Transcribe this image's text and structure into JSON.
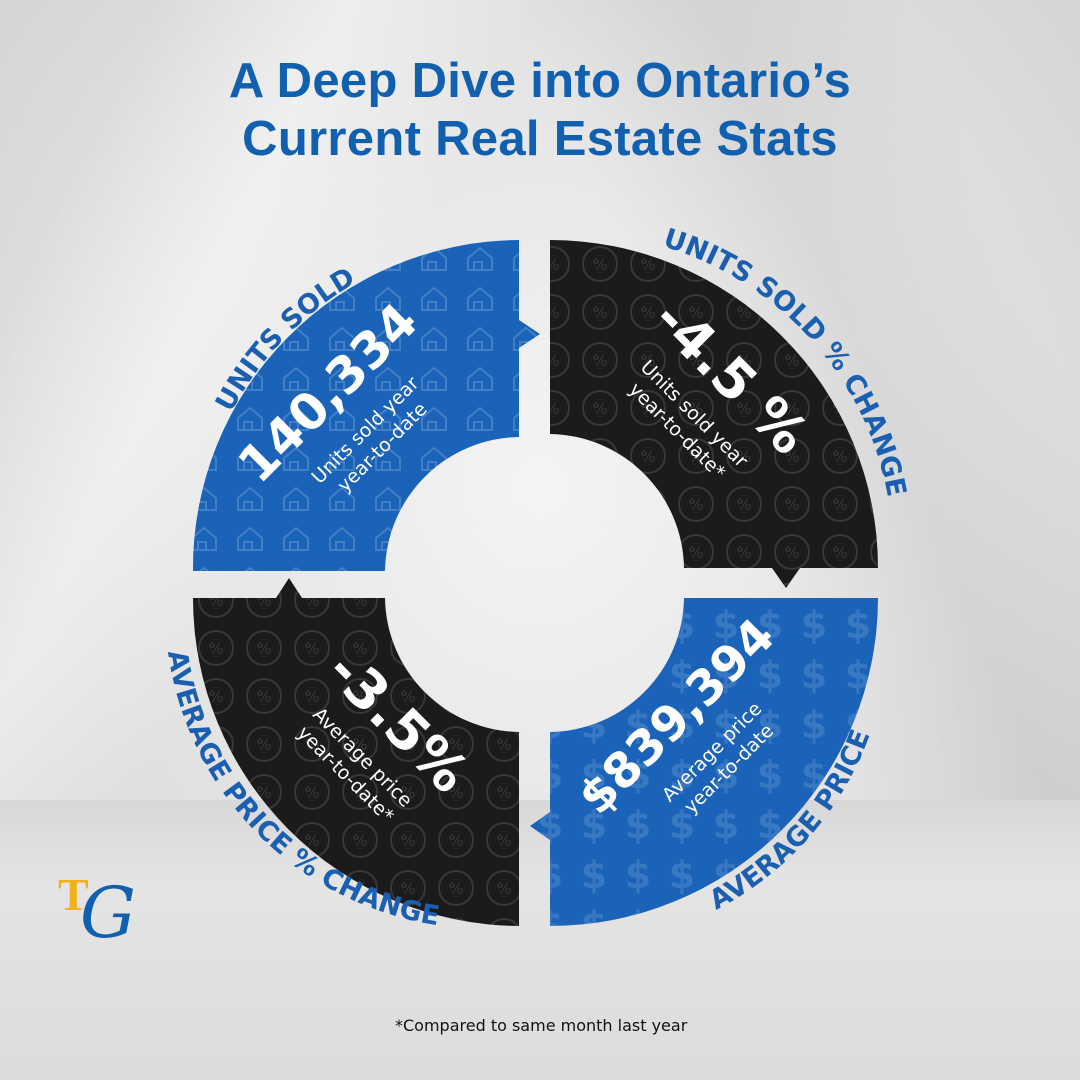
{
  "title": {
    "line1": "A Deep Dive into Ontario’s",
    "line2": "Current Real Estate Stats"
  },
  "quadrants": {
    "units_sold": {
      "label": "UNITS SOLD",
      "value": "140,334",
      "desc1": "Units sold year",
      "desc2": "year-to-date"
    },
    "units_change": {
      "label": "UNITS SOLD % CHANGE",
      "value": "-4.5 %",
      "desc1": "Units sold year",
      "desc2": "year-to-date*"
    },
    "avg_price": {
      "label": "AVERAGE PRICE",
      "value": "$839,394",
      "desc1": "Average price",
      "desc2": "year-to-date"
    },
    "avg_price_change": {
      "label": "AVERAGE PRICE % CHANGE",
      "value": "-3.5%",
      "desc1": "Average price",
      "desc2": "year-to-date*"
    }
  },
  "footnote": "*Compared to same month last year",
  "logo": {
    "t": "T",
    "g": "G"
  },
  "colors": {
    "blue": "#1a63b8",
    "black": "#1c1a1b",
    "title": "#1160b0"
  },
  "icons": {
    "units_sold": "house-pattern",
    "units_change": "percent-pattern",
    "avg_price": "dollar-pattern",
    "avg_price_change": "percent-pattern"
  }
}
